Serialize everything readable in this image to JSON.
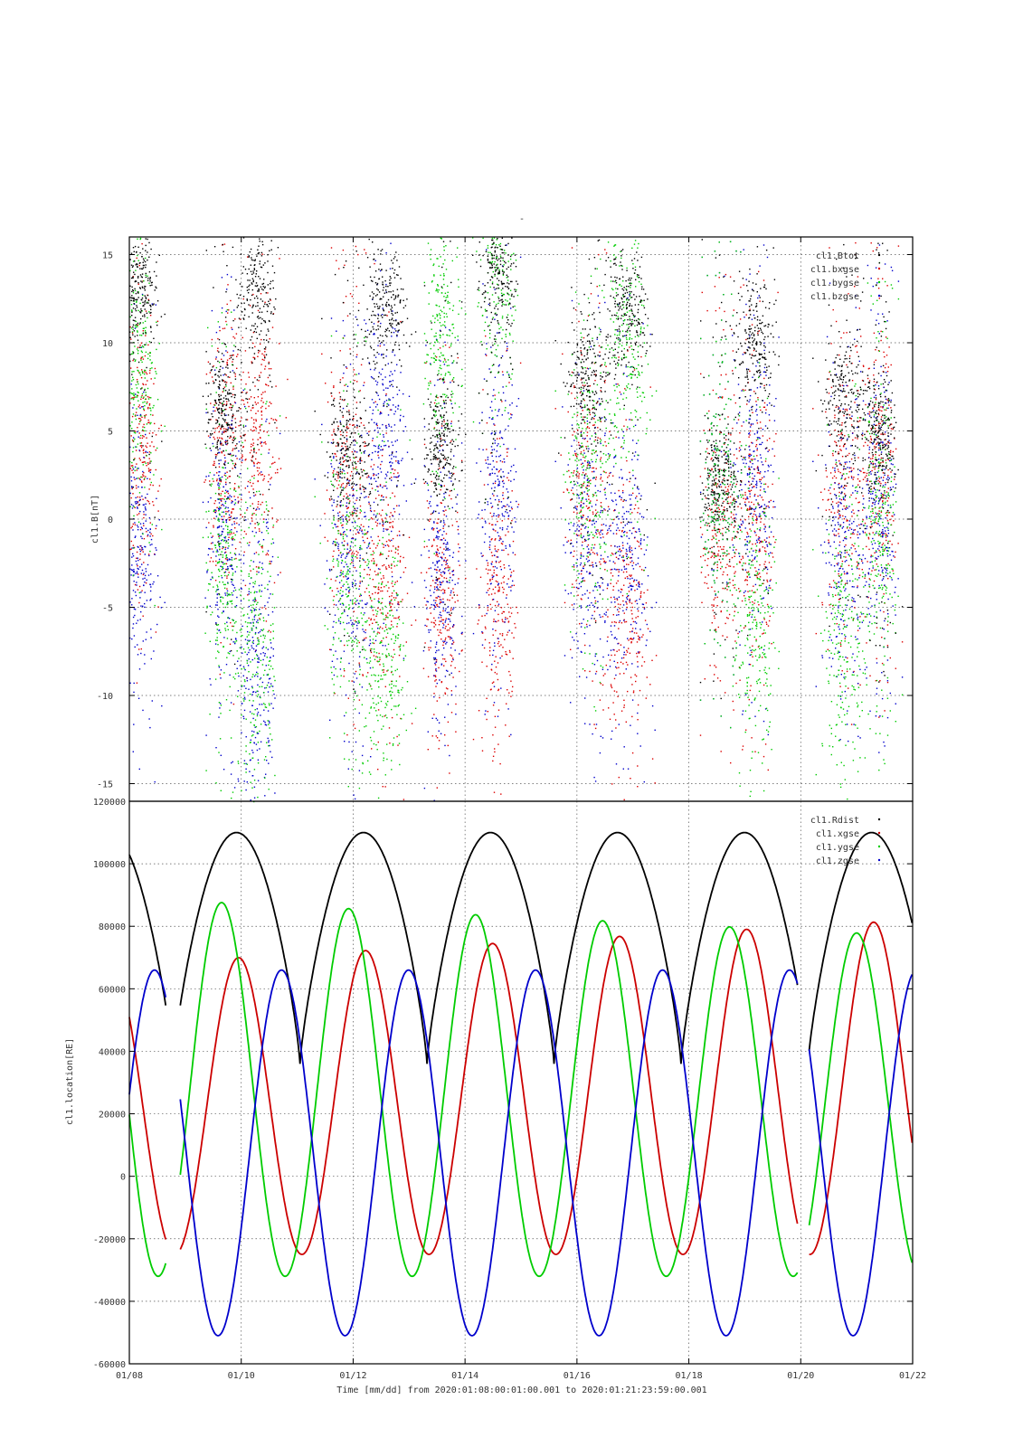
{
  "chart_data": [
    {
      "type": "scatter",
      "title": "-",
      "ylabel": "cl1.B[nT]",
      "ylim": [
        -16,
        16
      ],
      "yticks": [
        -15,
        -10,
        -5,
        0,
        5,
        10,
        15
      ],
      "xlim": [
        "01/08",
        "01/22"
      ],
      "grid": true,
      "legend_placement": "top-right",
      "series": [
        {
          "name": "cl1.Btot",
          "color": "#000000"
        },
        {
          "name": "cl1.bxgse",
          "color": "#dd0000"
        },
        {
          "name": "cl1.bygse",
          "color": "#00cc00"
        },
        {
          "name": "cl1.bzgse",
          "color": "#0000cc"
        }
      ]
    },
    {
      "type": "line",
      "ylabel": "cl1.location[RE]",
      "ylim": [
        -60000,
        120000
      ],
      "yticks": [
        -60000,
        -40000,
        -20000,
        0,
        20000,
        40000,
        60000,
        80000,
        100000,
        120000
      ],
      "xlabel": "Time [mm/dd]  from 2020:01:08:00:01:00.001  to  2020:01:21:23:59:00.001",
      "xticks": [
        "01/08",
        "01/10",
        "01/12",
        "01/14",
        "01/16",
        "01/18",
        "01/20",
        "01/22"
      ],
      "grid": true,
      "legend_placement": "top-right",
      "data_gaps_days": [
        [
          8.65,
          8.9
        ],
        [
          19.95,
          20.15
        ]
      ],
      "series": [
        {
          "name": "cl1.Rdist",
          "color": "#000000",
          "period_days": 2.27,
          "min": 36000,
          "max": 110000,
          "minima_days": [
            11.05,
            13.32,
            15.59,
            17.86
          ]
        },
        {
          "name": "cl1.xgse",
          "color": "#cc0000",
          "period_days": 2.27,
          "min": -25000,
          "max_first": 68000,
          "max_last": 82000,
          "maxima_days": [
            9.95,
            12.25,
            14.55,
            16.85,
            19.1,
            21.3
          ]
        },
        {
          "name": "cl1.ygse",
          "color": "#00cc00",
          "period_days": 2.27,
          "min": -32000,
          "max_first": 89000,
          "max_last": 77000,
          "maxima_days": [
            9.65,
            11.95,
            14.2,
            16.45,
            18.75,
            20.95
          ]
        },
        {
          "name": "cl1.zgse",
          "color": "#0000cc",
          "period_days": 2.27,
          "min": -51000,
          "max": 66000,
          "maxima_days": [
            8.45,
            10.7,
            12.95,
            15.25,
            17.5,
            19.75,
            21.85
          ]
        }
      ]
    }
  ]
}
